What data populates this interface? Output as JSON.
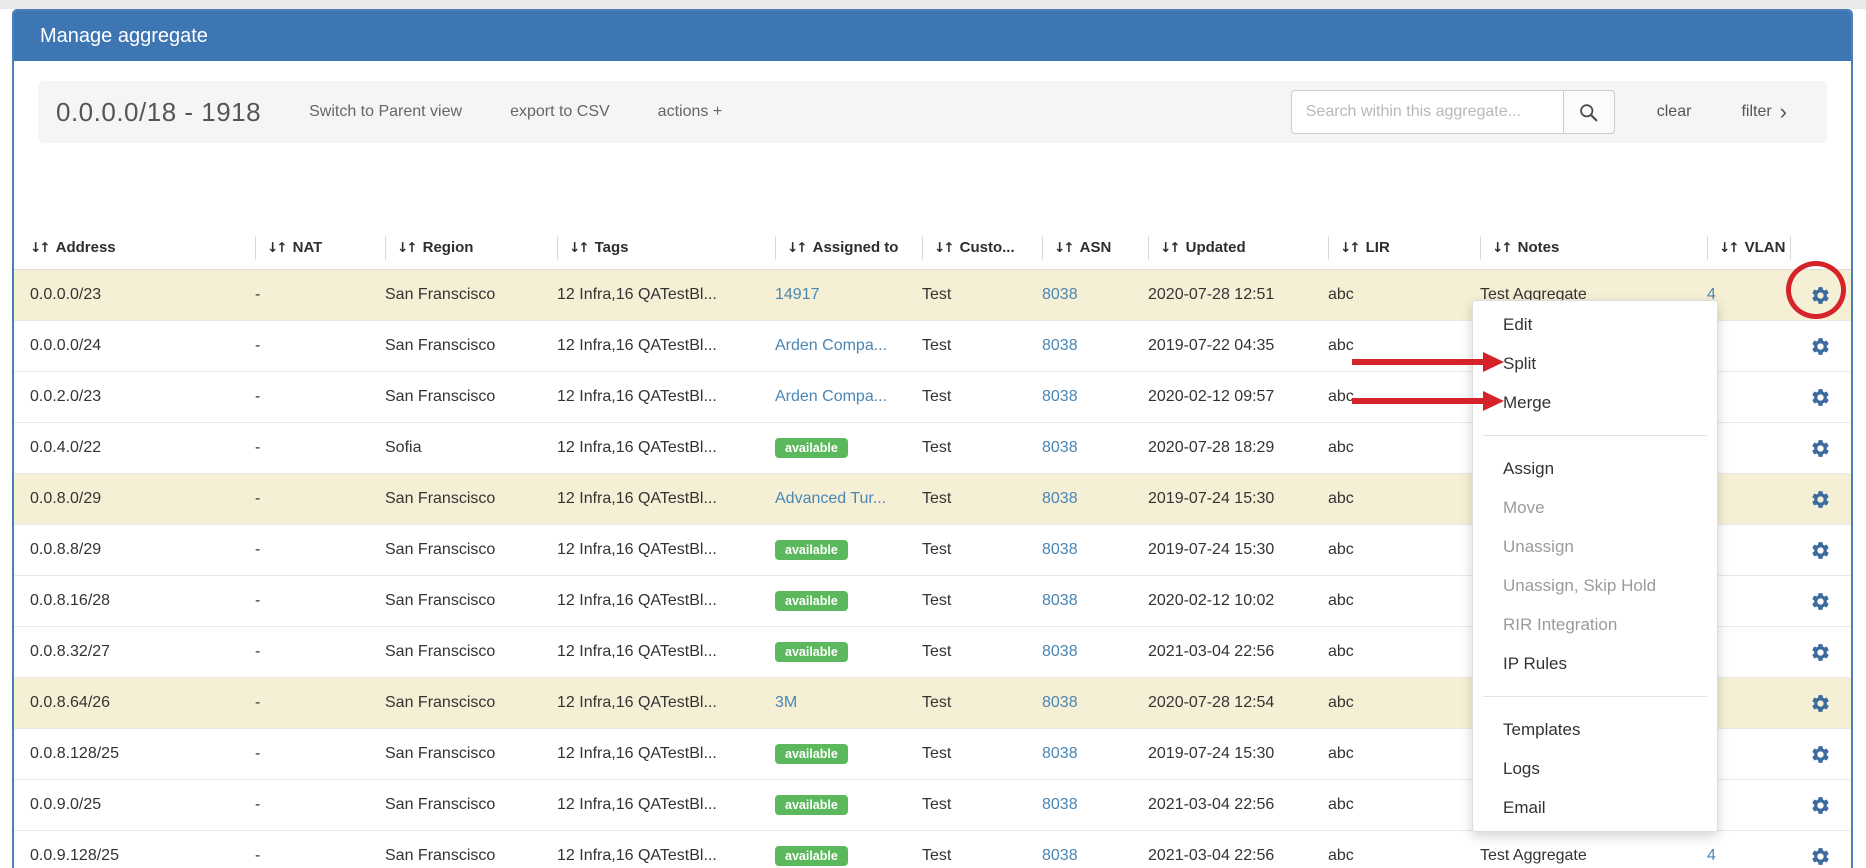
{
  "title_bar": {
    "title": "Manage aggregate"
  },
  "toolbar": {
    "aggregate_label": "0.0.0.0/18 - 1918",
    "switch_view_label": "Switch to Parent view",
    "export_csv_label": "export to CSV",
    "actions_label": "actions +",
    "search_placeholder": "Search within this aggregate...",
    "search_value": "",
    "clear_label": "clear",
    "filter_label": "filter",
    "filter_chevron": "›"
  },
  "table": {
    "sort_glyph": "↓↑",
    "columns": [
      {
        "key": "address",
        "label": "Address"
      },
      {
        "key": "nat",
        "label": "NAT"
      },
      {
        "key": "region",
        "label": "Region"
      },
      {
        "key": "tags",
        "label": "Tags"
      },
      {
        "key": "assigned",
        "label": "Assigned to"
      },
      {
        "key": "customer",
        "label": "Custo..."
      },
      {
        "key": "asn",
        "label": "ASN"
      },
      {
        "key": "updated",
        "label": "Updated"
      },
      {
        "key": "lir",
        "label": "LIR"
      },
      {
        "key": "notes",
        "label": "Notes"
      },
      {
        "key": "vlan",
        "label": "VLAN"
      },
      {
        "key": "gear",
        "label": ""
      }
    ],
    "rows": [
      {
        "address": "0.0.0.0/23",
        "nat": "-",
        "region": "San Franscisco",
        "tags": "12 Infra,16 QATestBl...",
        "assigned_type": "link",
        "assigned_label": "14917",
        "customer": "Test",
        "asn": "8038",
        "updated": "2020-07-28 12:51",
        "lir": "abc",
        "notes": "Test Aggregate",
        "vlan": "4",
        "highlighted": true
      },
      {
        "address": "0.0.0.0/24",
        "nat": "-",
        "region": "San Franscisco",
        "tags": "12 Infra,16 QATestBl...",
        "assigned_type": "link",
        "assigned_label": "Arden Compa...",
        "customer": "Test",
        "asn": "8038",
        "updated": "2019-07-22 04:35",
        "lir": "abc",
        "notes": "",
        "vlan": "",
        "highlighted": false
      },
      {
        "address": "0.0.2.0/23",
        "nat": "-",
        "region": "San Franscisco",
        "tags": "12 Infra,16 QATestBl...",
        "assigned_type": "link",
        "assigned_label": "Arden Compa...",
        "customer": "Test",
        "asn": "8038",
        "updated": "2020-02-12 09:57",
        "lir": "abc",
        "notes": "",
        "vlan": "",
        "highlighted": false
      },
      {
        "address": "0.0.4.0/22",
        "nat": "-",
        "region": "Sofia",
        "tags": "12 Infra,16 QATestBl...",
        "assigned_type": "badge",
        "assigned_label": "available",
        "customer": "Test",
        "asn": "8038",
        "updated": "2020-07-28 18:29",
        "lir": "abc",
        "notes": "",
        "vlan": "",
        "highlighted": false
      },
      {
        "address": "0.0.8.0/29",
        "nat": "-",
        "region": "San Franscisco",
        "tags": "12 Infra,16 QATestBl...",
        "assigned_type": "link",
        "assigned_label": "Advanced Tur...",
        "customer": "Test",
        "asn": "8038",
        "updated": "2019-07-24 15:30",
        "lir": "abc",
        "notes": "",
        "vlan": "",
        "highlighted": true
      },
      {
        "address": "0.0.8.8/29",
        "nat": "-",
        "region": "San Franscisco",
        "tags": "12 Infra,16 QATestBl...",
        "assigned_type": "badge",
        "assigned_label": "available",
        "customer": "Test",
        "asn": "8038",
        "updated": "2019-07-24 15:30",
        "lir": "abc",
        "notes": "",
        "vlan": "",
        "highlighted": false
      },
      {
        "address": "0.0.8.16/28",
        "nat": "-",
        "region": "San Franscisco",
        "tags": "12 Infra,16 QATestBl...",
        "assigned_type": "badge",
        "assigned_label": "available",
        "customer": "Test",
        "asn": "8038",
        "updated": "2020-02-12 10:02",
        "lir": "abc",
        "notes": "",
        "vlan": "",
        "highlighted": false
      },
      {
        "address": "0.0.8.32/27",
        "nat": "-",
        "region": "San Franscisco",
        "tags": "12 Infra,16 QATestBl...",
        "assigned_type": "badge",
        "assigned_label": "available",
        "customer": "Test",
        "asn": "8038",
        "updated": "2021-03-04 22:56",
        "lir": "abc",
        "notes": "",
        "vlan": "",
        "highlighted": false
      },
      {
        "address": "0.0.8.64/26",
        "nat": "-",
        "region": "San Franscisco",
        "tags": "12 Infra,16 QATestBl...",
        "assigned_type": "link",
        "assigned_label": "3M",
        "customer": "Test",
        "asn": "8038",
        "updated": "2020-07-28 12:54",
        "lir": "abc",
        "notes": "",
        "vlan": "",
        "highlighted": true
      },
      {
        "address": "0.0.8.128/25",
        "nat": "-",
        "region": "San Franscisco",
        "tags": "12 Infra,16 QATestBl...",
        "assigned_type": "badge",
        "assigned_label": "available",
        "customer": "Test",
        "asn": "8038",
        "updated": "2019-07-24 15:30",
        "lir": "abc",
        "notes": "",
        "vlan": "",
        "highlighted": false
      },
      {
        "address": "0.0.9.0/25",
        "nat": "-",
        "region": "San Franscisco",
        "tags": "12 Infra,16 QATestBl...",
        "assigned_type": "badge",
        "assigned_label": "available",
        "customer": "Test",
        "asn": "8038",
        "updated": "2021-03-04 22:56",
        "lir": "abc",
        "notes": "",
        "vlan": "",
        "highlighted": false
      },
      {
        "address": "0.0.9.128/25",
        "nat": "-",
        "region": "San Franscisco",
        "tags": "12 Infra,16 QATestBl...",
        "assigned_type": "badge",
        "assigned_label": "available",
        "customer": "Test",
        "asn": "8038",
        "updated": "2021-03-04 22:56",
        "lir": "abc",
        "notes": "Test Aggregate",
        "vlan": "4",
        "highlighted": false
      }
    ]
  },
  "context_menu": {
    "items": [
      {
        "label": "Edit",
        "enabled": true
      },
      {
        "label": "Split",
        "enabled": true
      },
      {
        "label": "Merge",
        "enabled": true
      },
      {
        "divider": true
      },
      {
        "label": "Assign",
        "enabled": true
      },
      {
        "label": "Move",
        "enabled": false
      },
      {
        "label": "Unassign",
        "enabled": false
      },
      {
        "label": "Unassign, Skip Hold",
        "enabled": false
      },
      {
        "label": "RIR Integration",
        "enabled": false
      },
      {
        "label": "IP Rules",
        "enabled": true
      },
      {
        "divider": true
      },
      {
        "label": "Templates",
        "enabled": true
      },
      {
        "label": "Logs",
        "enabled": true
      },
      {
        "label": "Email",
        "enabled": true
      }
    ]
  },
  "annotations": {
    "circle_target": "row-1-gear",
    "arrow_targets": [
      "Split",
      "Merge"
    ]
  },
  "colors": {
    "header_blue": "#3e76b4",
    "link_blue": "#4a86b4",
    "badge_green": "#5cb85c",
    "highlight_yellow": "#f5f0d5",
    "gear_blue": "#3d6b9e",
    "annotation_red": "#d6232a"
  }
}
